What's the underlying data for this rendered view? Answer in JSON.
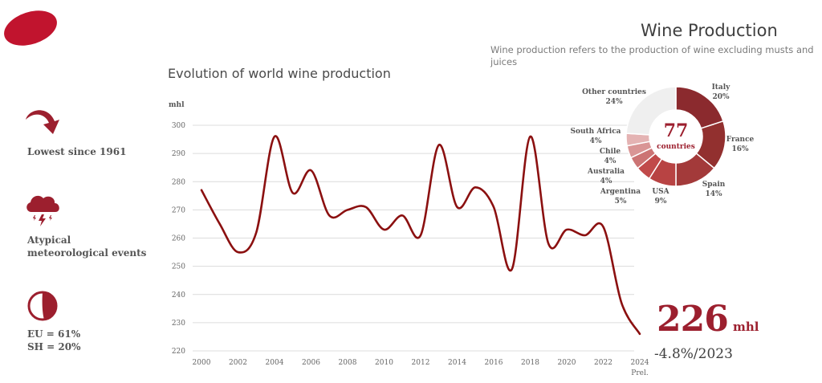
{
  "header": {
    "title": "Wine Production",
    "subtitle": "Wine production refers to the production of wine excluding musts and juices"
  },
  "brand": {
    "logo_color": "#C1142E",
    "accent": "#9C1F2E",
    "line_color": "#8B1010"
  },
  "sidebar": {
    "items": [
      {
        "icon": "curved-down-arrow-icon",
        "label_lines": [
          "Lowest since 1961"
        ]
      },
      {
        "icon": "storm-cloud-icon",
        "label_lines": [
          "Atypical",
          "meteorological events"
        ]
      },
      {
        "icon": "pie-share-icon",
        "label_lines": [
          "EU = 61%",
          "SH = 20%"
        ]
      }
    ]
  },
  "highlight": {
    "value": "226",
    "unit": "mhl",
    "change": "-4.8%/2023"
  },
  "chart_data": [
    {
      "type": "line",
      "title": "Evolution of world wine production",
      "xlabel": "",
      "ylabel": "mhl",
      "x": [
        2000,
        2001,
        2002,
        2003,
        2004,
        2005,
        2006,
        2007,
        2008,
        2009,
        2010,
        2011,
        2012,
        2013,
        2014,
        2015,
        2016,
        2017,
        2018,
        2019,
        2020,
        2021,
        2022,
        2023,
        2024
      ],
      "series": [
        {
          "name": "World wine production",
          "values": [
            277,
            265,
            255,
            262,
            296,
            276,
            284,
            268,
            270,
            271,
            263,
            268,
            261,
            293,
            271,
            278,
            271,
            249,
            296,
            258,
            263,
            261,
            264,
            237,
            226
          ]
        }
      ],
      "xticks": [
        "2000",
        "2002",
        "2004",
        "2006",
        "2008",
        "2010",
        "2012",
        "2014",
        "2016",
        "2018",
        "2020",
        "2022",
        "2024"
      ],
      "xtick_note": {
        "2024": "Prel."
      },
      "yticks": [
        220,
        230,
        240,
        250,
        260,
        270,
        280,
        290,
        300
      ],
      "ylim": [
        220,
        300
      ],
      "grid": true,
      "legend": "none"
    },
    {
      "type": "pie",
      "title": "Wine production share by country",
      "center_value": "77",
      "center_label": "countries",
      "slices": [
        {
          "label": "Italy",
          "value": 20,
          "pct_label": "20%",
          "color": "#8B2A2E"
        },
        {
          "label": "France",
          "value": 16,
          "pct_label": "16%",
          "color": "#92302F"
        },
        {
          "label": "Spain",
          "value": 14,
          "pct_label": "14%",
          "color": "#A33A3A"
        },
        {
          "label": "USA",
          "value": 9,
          "pct_label": "9%",
          "color": "#B84343"
        },
        {
          "label": "Argentina",
          "value": 5,
          "pct_label": "5%",
          "color": "#C14A4A"
        },
        {
          "label": "Australia",
          "value": 4,
          "pct_label": "4%",
          "color": "#CC7474"
        },
        {
          "label": "Chile",
          "value": 4,
          "pct_label": "4%",
          "color": "#D99595"
        },
        {
          "label": "South Africa",
          "value": 4,
          "pct_label": "4%",
          "color": "#E4B3B3"
        },
        {
          "label": "Other countries",
          "value": 24,
          "pct_label": "24%",
          "color": "#EFEFEF"
        }
      ]
    }
  ]
}
